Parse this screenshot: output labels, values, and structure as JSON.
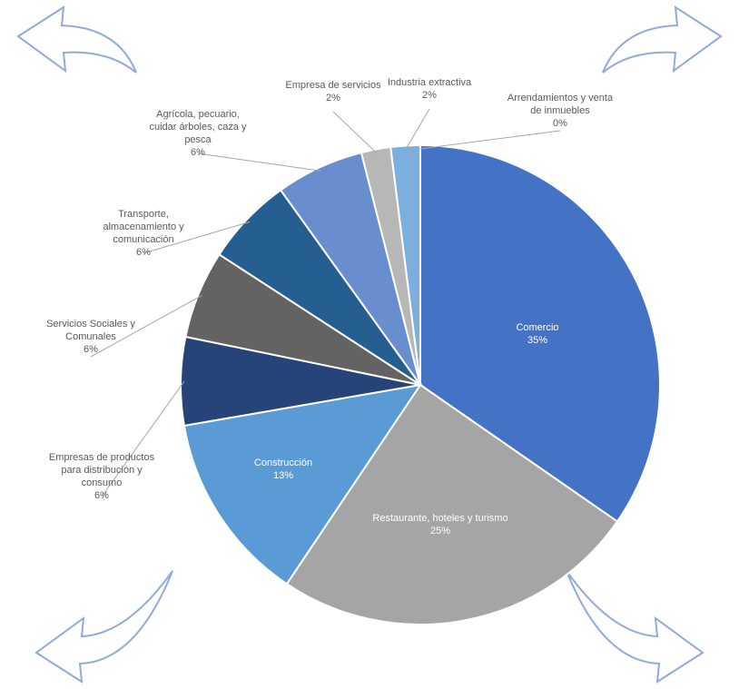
{
  "chart_data": {
    "type": "pie",
    "categories": [
      "Comercio",
      "Restaurante, hoteles y turismo",
      "Construcción",
      "Empresas de productos para distribución y consumo",
      "Servicios Sociales y Comunales",
      "Transporte, almacenamiento y comunicación",
      "Agrícola, pecuario, cuidar árboles, caza y pesca",
      "Empresa de servicios",
      "Industria extractiva",
      "Arrendamientos y venta de inmuebles"
    ],
    "values": [
      35,
      25,
      13,
      6,
      6,
      6,
      6,
      2,
      2,
      0
    ],
    "value_labels": [
      "35%",
      "25%",
      "13%",
      "6%",
      "6%",
      "6%",
      "6%",
      "2%",
      "2%",
      "0%"
    ],
    "colors": [
      "#4472c4",
      "#a5a5a5",
      "#5b9bd5",
      "#264478",
      "#636363",
      "#255e91",
      "#698ed0",
      "#b7b7b7",
      "#7cafdd",
      "#335aa1"
    ]
  }
}
